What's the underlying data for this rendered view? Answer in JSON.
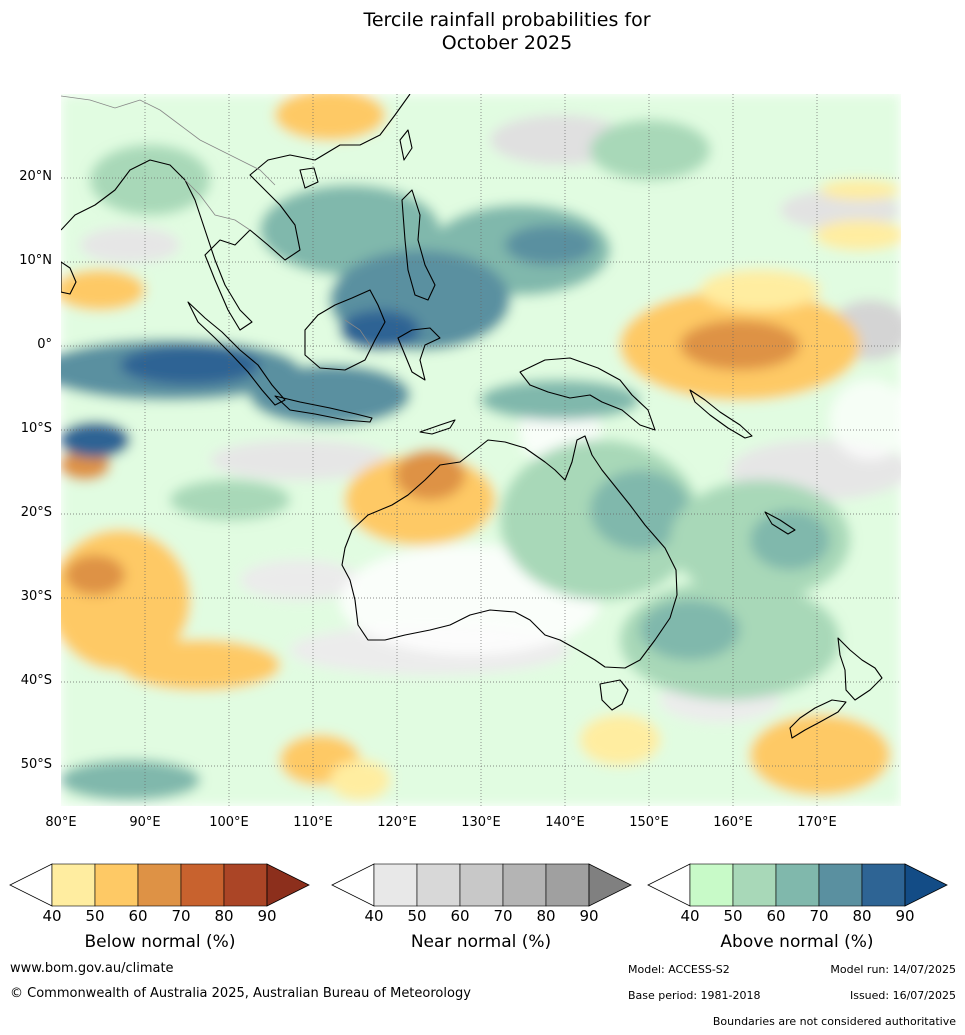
{
  "title_line1": "Tercile rainfall probabilities for",
  "title_line2": "October 2025",
  "lat_labels": [
    "20°N",
    "10°N",
    "0°",
    "10°S",
    "20°S",
    "30°S",
    "40°S",
    "50°S"
  ],
  "lon_labels": [
    "80°E",
    "90°E",
    "100°E",
    "110°E",
    "120°E",
    "130°E",
    "140°E",
    "150°E",
    "160°E",
    "170°E"
  ],
  "colorbars": [
    {
      "title": "Below normal (%)",
      "ticks": [
        "40",
        "50",
        "60",
        "70",
        "80",
        "90"
      ],
      "colors": [
        "#ffeda0",
        "#fec965",
        "#de9245",
        "#c8622e",
        "#ab4526"
      ],
      "over_color": "#8c2f1c"
    },
    {
      "title": "Near normal (%)",
      "ticks": [
        "40",
        "50",
        "60",
        "70",
        "80",
        "90"
      ],
      "colors": [
        "#e8e8e8",
        "#d8d8d8",
        "#c8c8c8",
        "#b4b4b4",
        "#a0a0a0"
      ],
      "over_color": "#808080"
    },
    {
      "title": "Above normal (%)",
      "ticks": [
        "40",
        "50",
        "60",
        "70",
        "80",
        "90"
      ],
      "colors": [
        "#c8fac8",
        "#a8d8b8",
        "#80b8ac",
        "#5a90a0",
        "#2e6494"
      ],
      "over_color": "#134c86"
    }
  ],
  "footer": {
    "website": "www.bom.gov.au/climate",
    "copyright": "© Commonwealth of Australia 2025, Australian Bureau of Meteorology",
    "model": "Model: ACCESS-S2",
    "model_run": "Model run: 14/07/2025",
    "base_period": "Base period: 1981-2018",
    "issued": "Issued: 16/07/2025",
    "boundaries_note": "Boundaries are not considered authoritative"
  }
}
